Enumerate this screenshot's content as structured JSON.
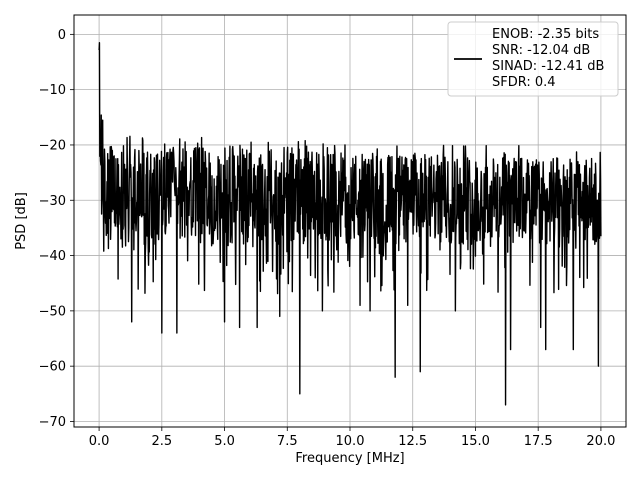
{
  "chart_data": {
    "type": "line",
    "xlabel": "Frequency [MHz]",
    "ylabel": "PSD [dB]",
    "xlim": [
      -1.0,
      21.0
    ],
    "ylim": [
      -71,
      3.5
    ],
    "xticks": [
      0.0,
      2.5,
      5.0,
      7.5,
      10.0,
      12.5,
      15.0,
      17.5,
      20.0
    ],
    "xtick_labels": [
      "0.0",
      "2.5",
      "5.0",
      "7.5",
      "10.0",
      "12.5",
      "15.0",
      "17.5",
      "20.0"
    ],
    "yticks": [
      0,
      -10,
      -20,
      -30,
      -40,
      -50,
      -60,
      -70
    ],
    "ytick_labels": [
      "0",
      "−10",
      "−20",
      "−30",
      "−40",
      "−50",
      "−60",
      "−70"
    ],
    "grid": true,
    "legend_position": "top-right",
    "legend_lines": [
      "ENOB: -2.35 bits",
      "SNR: -12.04 dB",
      "SINAD: -12.41 dB",
      "SFDR: 0.4"
    ],
    "series": [
      {
        "color": "#000000",
        "x_range": [
          0.0,
          20.0
        ],
        "level_db": -29,
        "noise_floor_top_approx": -20,
        "noise_floor_bottom_approx": -38,
        "peak_at_dc_db": 0,
        "notable_minima": [
          {
            "x": 1.3,
            "y": -52
          },
          {
            "x": 2.5,
            "y": -54
          },
          {
            "x": 3.1,
            "y": -54
          },
          {
            "x": 5.0,
            "y": -52
          },
          {
            "x": 5.6,
            "y": -53
          },
          {
            "x": 6.3,
            "y": -53
          },
          {
            "x": 7.2,
            "y": -51
          },
          {
            "x": 8.0,
            "y": -65
          },
          {
            "x": 8.9,
            "y": -50
          },
          {
            "x": 10.4,
            "y": -49
          },
          {
            "x": 10.8,
            "y": -50
          },
          {
            "x": 11.8,
            "y": -62
          },
          {
            "x": 12.3,
            "y": -49
          },
          {
            "x": 12.8,
            "y": -61
          },
          {
            "x": 14.2,
            "y": -50
          },
          {
            "x": 16.2,
            "y": -67
          },
          {
            "x": 16.4,
            "y": -57
          },
          {
            "x": 17.6,
            "y": -53
          },
          {
            "x": 17.8,
            "y": -57
          },
          {
            "x": 18.9,
            "y": -57
          },
          {
            "x": 19.9,
            "y": -60
          }
        ]
      }
    ]
  },
  "colors": {
    "line": "#000000",
    "grid": "#b0b0b0",
    "axes": "#000000",
    "legend_border": "#cccccc"
  }
}
